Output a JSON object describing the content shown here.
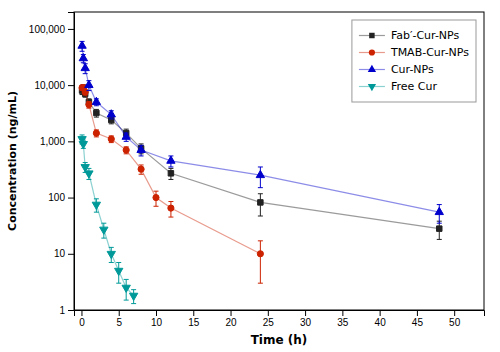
{
  "chart_data": {
    "type": "line",
    "xlabel": "Time (h)",
    "ylabel": "Concentration (ng/mL)",
    "log": "y",
    "xlim": [
      -1,
      54
    ],
    "ylim": [
      1,
      200000
    ],
    "xticks": [
      0,
      5,
      10,
      15,
      20,
      25,
      30,
      35,
      40,
      45,
      50
    ],
    "yticks": [
      1,
      10,
      100,
      {
        "value": 1000,
        "label": "1,000"
      },
      {
        "value": 10000,
        "label": "10,000"
      },
      {
        "value": 100000,
        "label": "100,000"
      }
    ],
    "legend": "upper right",
    "series": [
      {
        "name": "Fab′-Cur-NPs",
        "color": "#222222",
        "marker": "square",
        "line_style": "solid",
        "x": [
          0.083,
          0.25,
          0.5,
          1,
          2,
          4,
          6,
          8,
          12,
          24,
          48
        ],
        "values": [
          8000,
          9000,
          7000,
          5000,
          3200,
          2400,
          1400,
          750,
          270,
          82,
          28
        ],
        "error_low": [
          1200,
          1000,
          900,
          700,
          500,
          350,
          250,
          150,
          60,
          35,
          10
        ],
        "error_high": [
          1200,
          1000,
          900,
          700,
          500,
          350,
          250,
          150,
          60,
          35,
          10
        ]
      },
      {
        "name": "TMAB-Cur-NPs",
        "color": "#cc2200",
        "marker": "circle",
        "line_style": "solid",
        "x": [
          0.083,
          0.25,
          0.5,
          1,
          2,
          4,
          6,
          8,
          10,
          12,
          24
        ],
        "values": [
          9000,
          9000,
          7500,
          4500,
          1400,
          1100,
          700,
          320,
          100,
          65,
          10
        ],
        "error_low": [
          900,
          1000,
          800,
          600,
          200,
          150,
          100,
          60,
          30,
          20,
          7
        ],
        "error_high": [
          900,
          1000,
          800,
          600,
          200,
          150,
          100,
          60,
          30,
          20,
          7
        ]
      },
      {
        "name": "Cur-NPs",
        "color": "#0000cc",
        "marker": "triangle-up",
        "line_style": "solid",
        "x": [
          0.083,
          0.25,
          0.5,
          1,
          2,
          4,
          6,
          8,
          12,
          24,
          48
        ],
        "values": [
          50000,
          30000,
          20000,
          10000,
          5000,
          3000,
          1200,
          700,
          450,
          250,
          55
        ],
        "error_low": [
          10000,
          5000,
          4000,
          2000,
          700,
          500,
          200,
          150,
          100,
          100,
          20
        ],
        "error_high": [
          10000,
          5000,
          4000,
          2000,
          700,
          500,
          200,
          150,
          100,
          100,
          20
        ]
      },
      {
        "name": "Free Cur",
        "color": "#009999",
        "marker": "triangle-down",
        "line_style": "solid",
        "x": [
          0.083,
          0.25,
          0.5,
          1,
          2,
          3,
          4,
          5,
          6,
          7
        ],
        "values": [
          1100,
          900,
          350,
          270,
          75,
          27,
          10,
          5,
          2.5,
          1.8
        ],
        "error_low": [
          200,
          150,
          70,
          60,
          20,
          8,
          3,
          2,
          1,
          0.5
        ],
        "error_high": [
          200,
          150,
          70,
          60,
          20,
          8,
          3,
          2,
          1,
          0.5
        ]
      }
    ]
  }
}
